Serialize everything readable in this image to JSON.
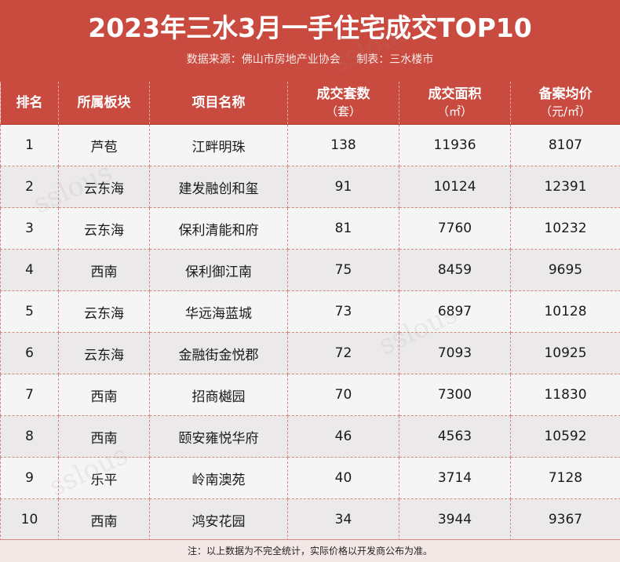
{
  "header": {
    "title": "2023年三水3月一手住宅成交TOP10",
    "source": "数据来源：佛山市房地产业协会",
    "maker": "制表：三水楼市"
  },
  "columns": [
    {
      "label": "排名",
      "unit": ""
    },
    {
      "label": "所属板块",
      "unit": ""
    },
    {
      "label": "项目名称",
      "unit": ""
    },
    {
      "label": "成交套数",
      "unit": "（套）"
    },
    {
      "label": "成交面积",
      "unit": "（㎡）"
    },
    {
      "label": "备案均价",
      "unit": "（元/㎡）"
    }
  ],
  "rows": [
    {
      "rank": "1",
      "area": "芦苞",
      "project": "江畔明珠",
      "units": "138",
      "sqm": "11936",
      "price": "8107"
    },
    {
      "rank": "2",
      "area": "云东海",
      "project": "建发融创和玺",
      "units": "91",
      "sqm": "10124",
      "price": "12391"
    },
    {
      "rank": "3",
      "area": "云东海",
      "project": "保利清能和府",
      "units": "81",
      "sqm": "7760",
      "price": "10232"
    },
    {
      "rank": "4",
      "area": "西南",
      "project": "保利御江南",
      "units": "75",
      "sqm": "8459",
      "price": "9695"
    },
    {
      "rank": "5",
      "area": "云东海",
      "project": "华远海蓝城",
      "units": "73",
      "sqm": "6897",
      "price": "10128"
    },
    {
      "rank": "6",
      "area": "云东海",
      "project": "金融街金悦郡",
      "units": "72",
      "sqm": "7093",
      "price": "10925"
    },
    {
      "rank": "7",
      "area": "西南",
      "project": "招商樾园",
      "units": "70",
      "sqm": "7300",
      "price": "11830"
    },
    {
      "rank": "8",
      "area": "西南",
      "project": "颐安雍悦华府",
      "units": "46",
      "sqm": "4563",
      "price": "10592"
    },
    {
      "rank": "9",
      "area": "乐平",
      "project": "岭南澳苑",
      "units": "40",
      "sqm": "3714",
      "price": "7128"
    },
    {
      "rank": "10",
      "area": "西南",
      "project": "鸿安花园",
      "units": "34",
      "sqm": "3944",
      "price": "9367"
    }
  ],
  "footer": {
    "note": "注：以上数据为不完全统计，实际价格以开发商公布为准。"
  },
  "watermark": {
    "text": "sslous"
  },
  "colors": {
    "header_bg": "#c94a3f",
    "body_bg": "#f2f0f0"
  }
}
